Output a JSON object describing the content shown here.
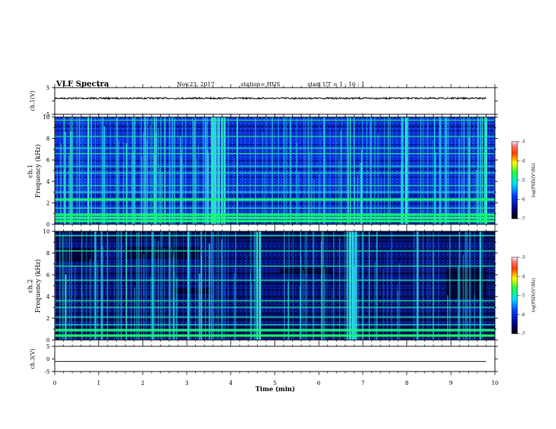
{
  "header": {
    "title": "VLF Spectra",
    "date": "Nov.23, 2017",
    "station": "station= HUS",
    "start_ut": "start  UT =   1 : 10 : 1"
  },
  "chart_data": [
    {
      "type": "line",
      "panel": "ch1-waveform",
      "ylabel": "ch.1(V)",
      "ylim": [
        -5,
        5
      ],
      "yticks": [
        "5",
        "-5"
      ],
      "x": [
        0,
        9.8
      ],
      "values": [
        1,
        1
      ],
      "color": "#000000"
    },
    {
      "type": "heatmap",
      "panel": "ch1-spectrogram",
      "ylabel_line1": "ch.1",
      "ylabel_line2": "Frequency  (kHz)",
      "ylim": [
        0,
        10
      ],
      "yticks": [
        "0",
        "2",
        "4",
        "6",
        "8",
        "10"
      ],
      "xlim": [
        0,
        9.8
      ],
      "bright_lines_khz": [
        0.3,
        0.6,
        0.9,
        1.5,
        2.3,
        3.0,
        3.6,
        4.8,
        5.4,
        6.6,
        7.1,
        8.2,
        9.7
      ],
      "broadband_bursts_min": [
        3.6,
        3.7,
        3.8,
        7.95,
        9.75
      ],
      "colorbar": {
        "label": "log(PSD)(V²/Hz)",
        "ticks": [
          "-3",
          "-4",
          "-5",
          "-6",
          "-7"
        ],
        "range": [
          -7,
          -3
        ]
      }
    },
    {
      "type": "heatmap",
      "panel": "ch2-spectrogram",
      "ylabel_line1": "ch.2",
      "ylabel_line2": "Frequency  (kHz)",
      "ylim": [
        0,
        10
      ],
      "yticks": [
        "0",
        "2",
        "4",
        "6",
        "8",
        "10"
      ],
      "xlim": [
        0,
        9.8
      ],
      "bright_lines_khz": [
        0.4,
        0.9,
        1.4,
        2.1,
        3.0,
        3.6,
        5.5,
        6.8,
        8.2,
        9.6
      ],
      "broadband_bursts_min": [
        4.6,
        6.7,
        6.8
      ],
      "colorbar": {
        "label": "log(PSD)(V²/Hz)",
        "ticks": [
          "-3",
          "-4",
          "-5",
          "-6",
          "-7"
        ],
        "range": [
          -7,
          -3
        ]
      }
    },
    {
      "type": "line",
      "panel": "ch3-waveform",
      "ylabel": "ch.3(V)",
      "ylim": [
        -5,
        5
      ],
      "yticks": [
        "5",
        "0",
        "-5"
      ],
      "x": [
        0,
        9.8
      ],
      "values": [
        -1,
        -1
      ],
      "color": "#000000"
    }
  ],
  "xaxis": {
    "label": "Time  (min)",
    "ticks": [
      "0",
      "1",
      "2",
      "3",
      "4",
      "5",
      "6",
      "7",
      "8",
      "9",
      "10"
    ],
    "range": [
      0,
      10
    ]
  },
  "colors": {
    "background": "#ffffff",
    "spectrogram_low": "#000032",
    "spectrogram_mid": "#0050ff",
    "spectrogram_line": "#18ff6a"
  }
}
